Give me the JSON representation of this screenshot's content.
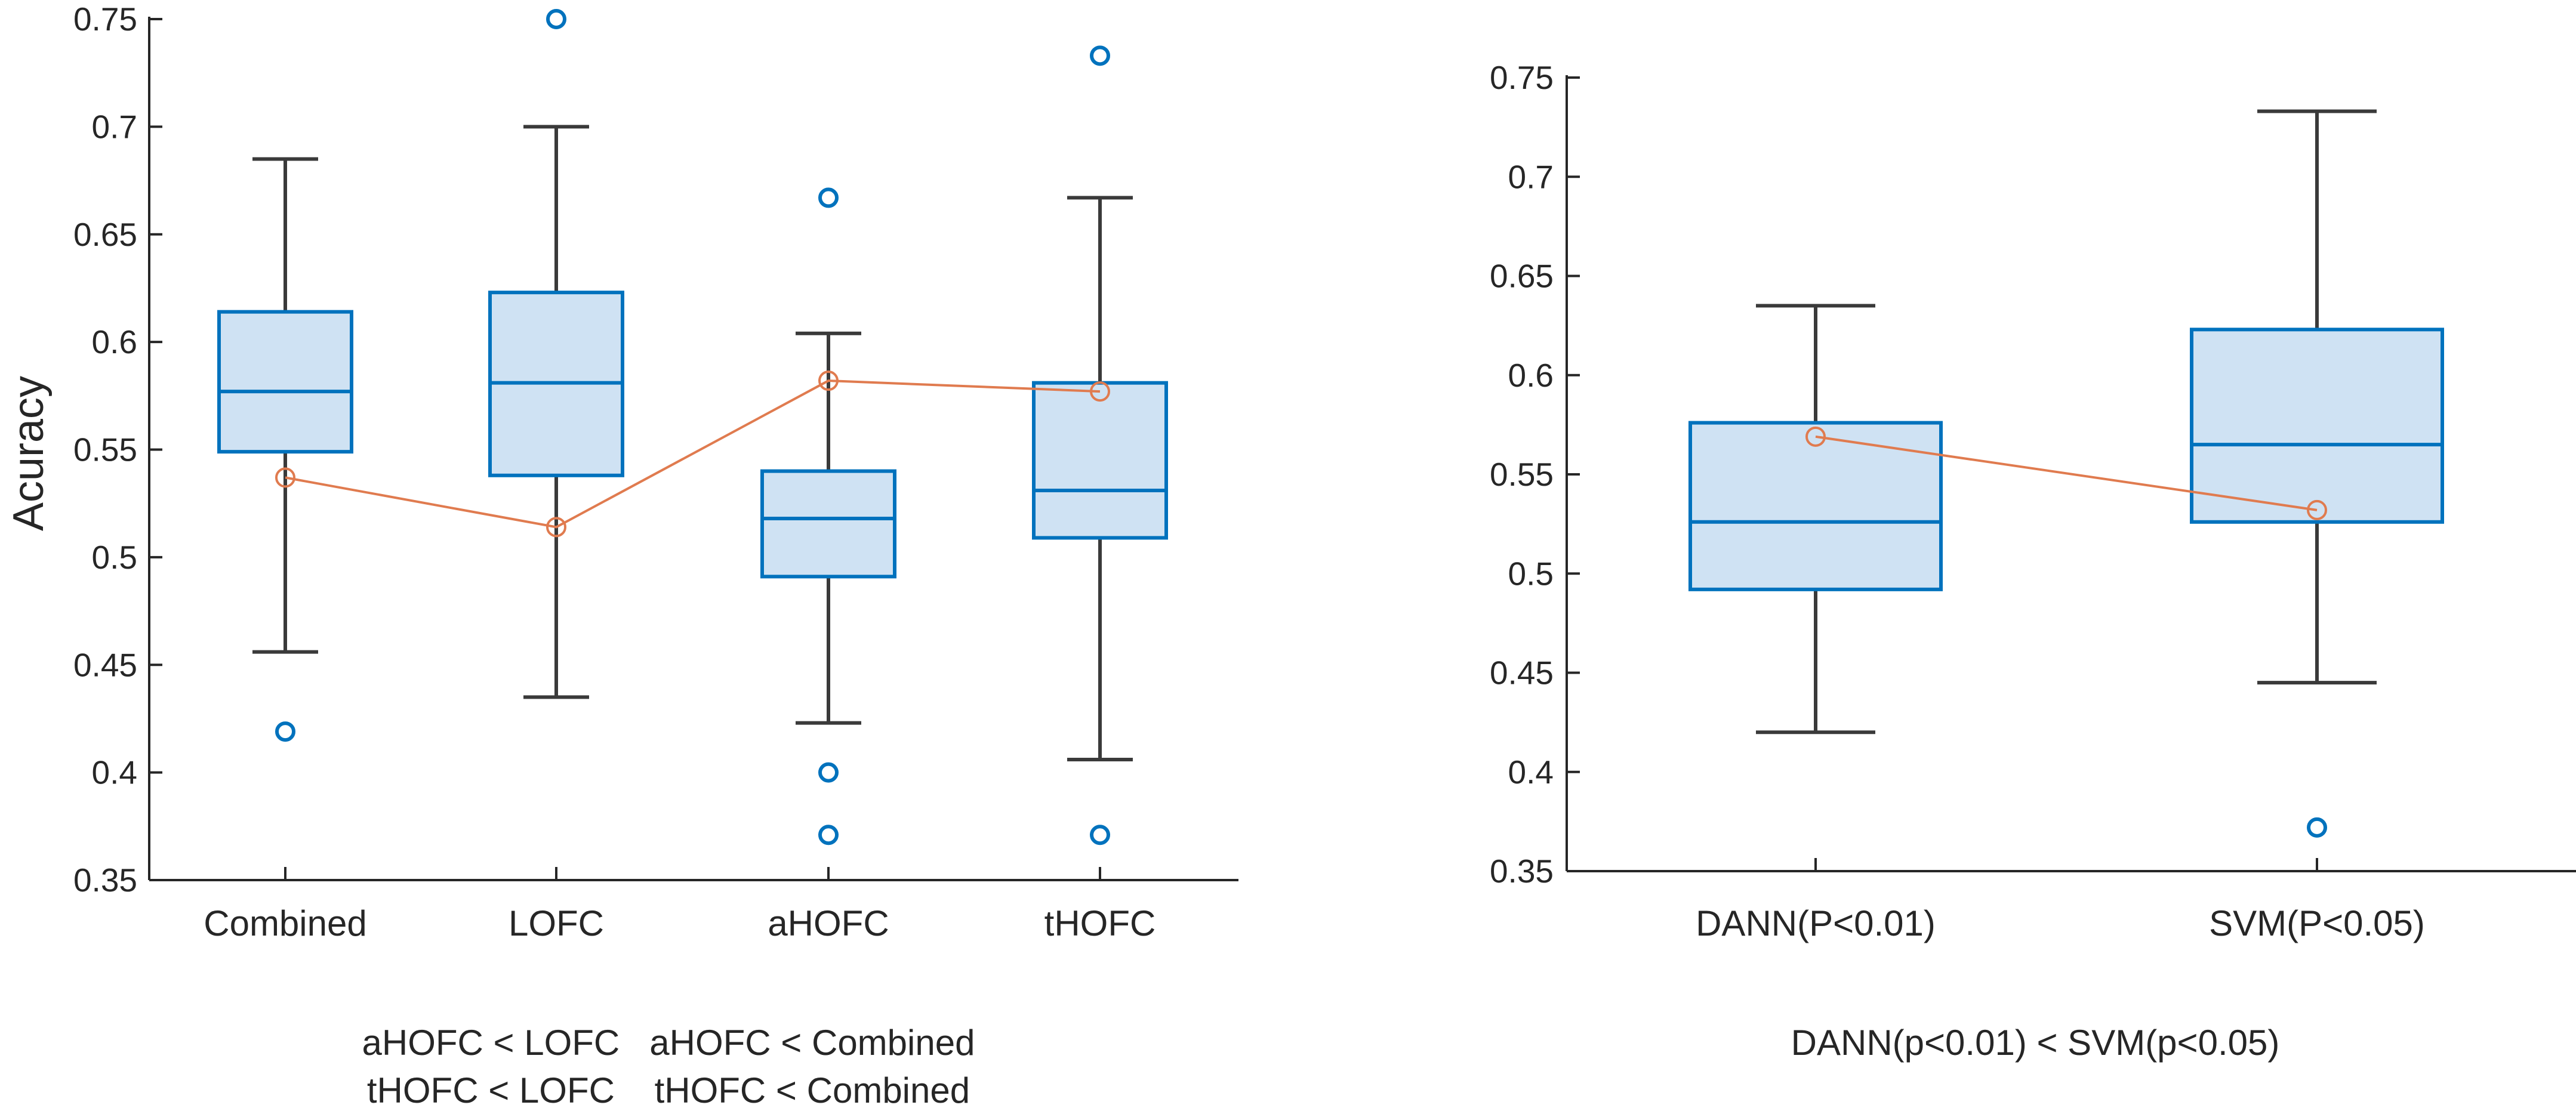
{
  "chart_data": [
    {
      "type": "box",
      "title": "",
      "xlabel": "",
      "ylabel": "Acuracy",
      "ylim": [
        0.35,
        0.75
      ],
      "yticks": [
        "0.35",
        "0.4",
        "0.45",
        "0.5",
        "0.55",
        "0.6",
        "0.65",
        "0.7",
        "0.75"
      ],
      "categories": [
        "Combined",
        "LOFC",
        "aHOFC",
        "tHOFC"
      ],
      "boxes": [
        {
          "whisker_low": 0.456,
          "q1": 0.549,
          "median": 0.577,
          "q3": 0.614,
          "whisker_high": 0.685,
          "outliers": [
            0.419
          ]
        },
        {
          "whisker_low": 0.435,
          "q1": 0.538,
          "median": 0.581,
          "q3": 0.623,
          "whisker_high": 0.7,
          "outliers": [
            0.75
          ]
        },
        {
          "whisker_low": 0.423,
          "q1": 0.491,
          "median": 0.518,
          "q3": 0.54,
          "whisker_high": 0.604,
          "outliers": [
            0.667,
            0.4,
            0.371
          ]
        },
        {
          "whisker_low": 0.406,
          "q1": 0.509,
          "median": 0.531,
          "q3": 0.581,
          "whisker_high": 0.667,
          "outliers": [
            0.733,
            0.371
          ]
        }
      ],
      "mean_line": [
        0.537,
        0.514,
        0.582,
        0.577
      ],
      "notes": [
        "aHOFC < LOFC   aHOFC < Combined",
        "tHOFC < LOFC    tHOFC < Combined"
      ]
    },
    {
      "type": "box",
      "title": "",
      "xlabel": "",
      "ylabel": "",
      "ylim": [
        0.35,
        0.75
      ],
      "yticks": [
        "0.35",
        "0.4",
        "0.45",
        "0.5",
        "0.55",
        "0.6",
        "0.65",
        "0.7",
        "0.75"
      ],
      "categories": [
        "DANN(P<0.01)",
        "SVM(P<0.05)"
      ],
      "boxes": [
        {
          "whisker_low": 0.42,
          "q1": 0.492,
          "median": 0.526,
          "q3": 0.576,
          "whisker_high": 0.635,
          "outliers": []
        },
        {
          "whisker_low": 0.445,
          "q1": 0.526,
          "median": 0.565,
          "q3": 0.623,
          "whisker_high": 0.733,
          "outliers": [
            0.372
          ]
        }
      ],
      "mean_line": [
        0.569,
        0.532
      ],
      "notes": [
        "DANN(p<0.01) < SVM(p<0.05)"
      ]
    }
  ],
  "colors": {
    "box_fill": "#cfe2f3",
    "box_edge": "#0072bd",
    "whisker": "#3a3a3a",
    "outlier": "#0072bd",
    "mean_line": "#e07b4f",
    "axis": "#262626"
  }
}
